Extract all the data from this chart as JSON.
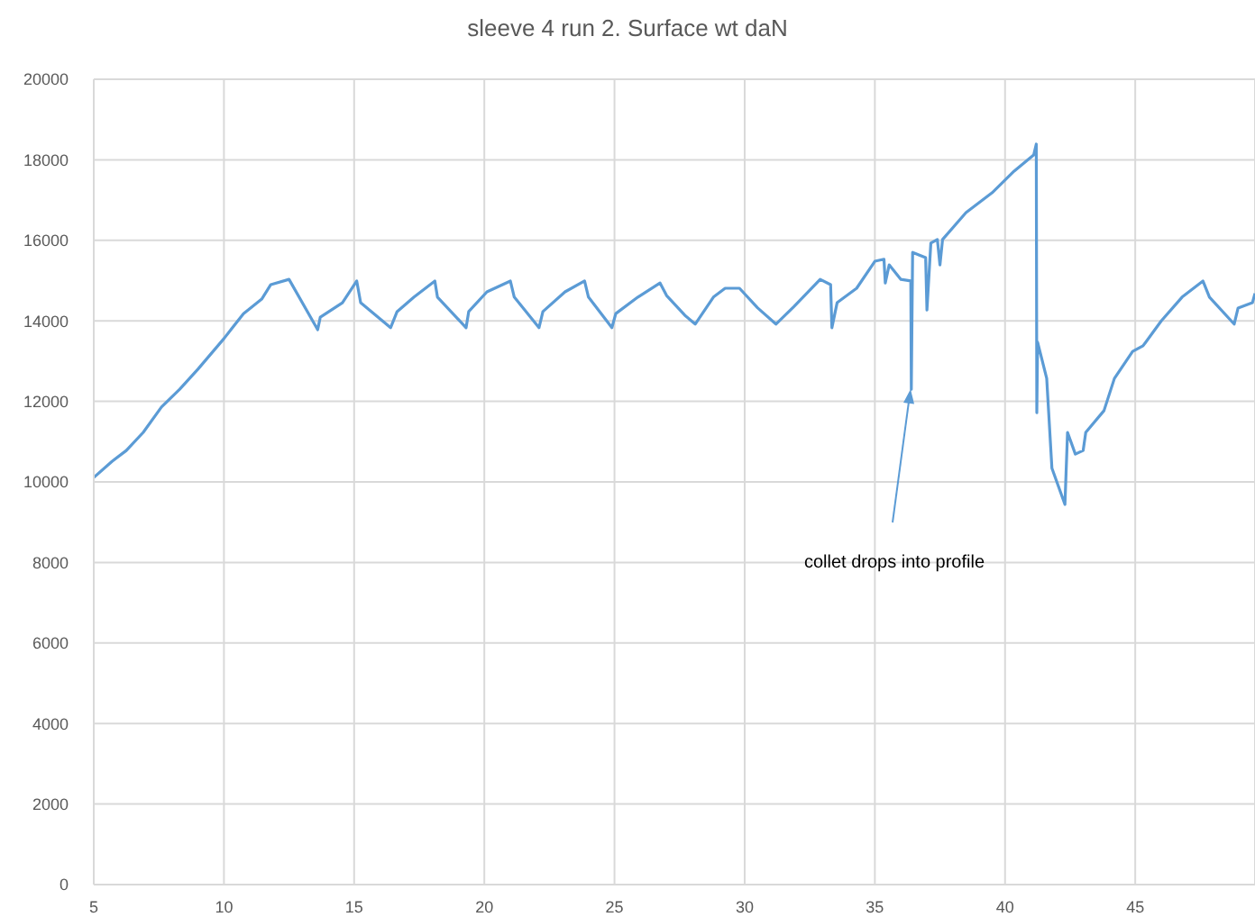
{
  "chart_data": {
    "type": "line",
    "title": "sleeve 4 run 2. Surface wt daN",
    "xlim": [
      5,
      49.6
    ],
    "xticks": [
      5,
      10,
      15,
      20,
      25,
      30,
      35,
      40,
      45
    ],
    "ylim": [
      0,
      20000
    ],
    "yticks": [
      0,
      2000,
      4000,
      6000,
      8000,
      10000,
      12000,
      14000,
      16000,
      18000,
      20000
    ],
    "grid": true,
    "marker": "none",
    "line_style": "solid",
    "annotations": [
      "collet drops into profile"
    ],
    "series": [
      {
        "color": "#5b9bd5",
        "x": [
          5,
          5.7,
          6.25,
          6.9,
          7.6,
          8.3,
          9.0,
          10,
          10.75,
          11.45,
          11.8,
          12.5,
          13.6,
          13.7,
          14.55,
          15.1,
          15.25,
          16.4,
          16.65,
          17.3,
          18.1,
          18.2,
          19.3,
          19.4,
          20.1,
          21.0,
          21.15,
          22.1,
          22.25,
          23.1,
          23.85,
          24.0,
          24.9,
          25.05,
          25.9,
          26.75,
          27.0,
          27.7,
          28.1,
          28.8,
          29.25,
          29.8,
          30.5,
          31.2,
          31.9,
          32.9,
          33.3,
          33.35,
          33.55,
          34.3,
          35.0,
          35.35,
          35.4,
          35.55,
          36.0,
          36.38,
          36.4,
          36.45,
          36.95,
          37.0,
          37.15,
          37.4,
          37.5,
          37.6,
          38.5,
          39.5,
          40.35,
          41.1,
          41.2,
          41.22,
          41.25,
          41.6,
          41.8,
          42.3,
          42.4,
          42.7,
          43.0,
          43.1,
          43.8,
          44.2,
          44.9,
          45.3,
          46.0,
          46.8,
          47.6,
          47.85,
          48.8,
          48.95,
          49.5,
          49.6
        ],
        "values": [
          10110,
          10510,
          10780,
          11230,
          11860,
          12300,
          12800,
          13560,
          14180,
          14540,
          14900,
          15030,
          13780,
          14090,
          14450,
          14990,
          14450,
          13830,
          14230,
          14590,
          14990,
          14590,
          13830,
          14230,
          14720,
          14990,
          14590,
          13830,
          14230,
          14720,
          14990,
          14590,
          13830,
          14180,
          14590,
          14940,
          14630,
          14140,
          13920,
          14590,
          14810,
          14810,
          14320,
          13920,
          14360,
          15030,
          14900,
          13830,
          14450,
          14810,
          15480,
          15530,
          14940,
          15390,
          15030,
          14990,
          12300,
          15700,
          15570,
          14270,
          15930,
          16020,
          15390,
          16020,
          16690,
          17180,
          17720,
          18120,
          18390,
          11720,
          13470,
          12570,
          10340,
          9440,
          11230,
          10690,
          10780,
          11230,
          11770,
          12570,
          13240,
          13380,
          14000,
          14590,
          14990,
          14590,
          13920,
          14320,
          14450,
          14680
        ]
      }
    ]
  }
}
